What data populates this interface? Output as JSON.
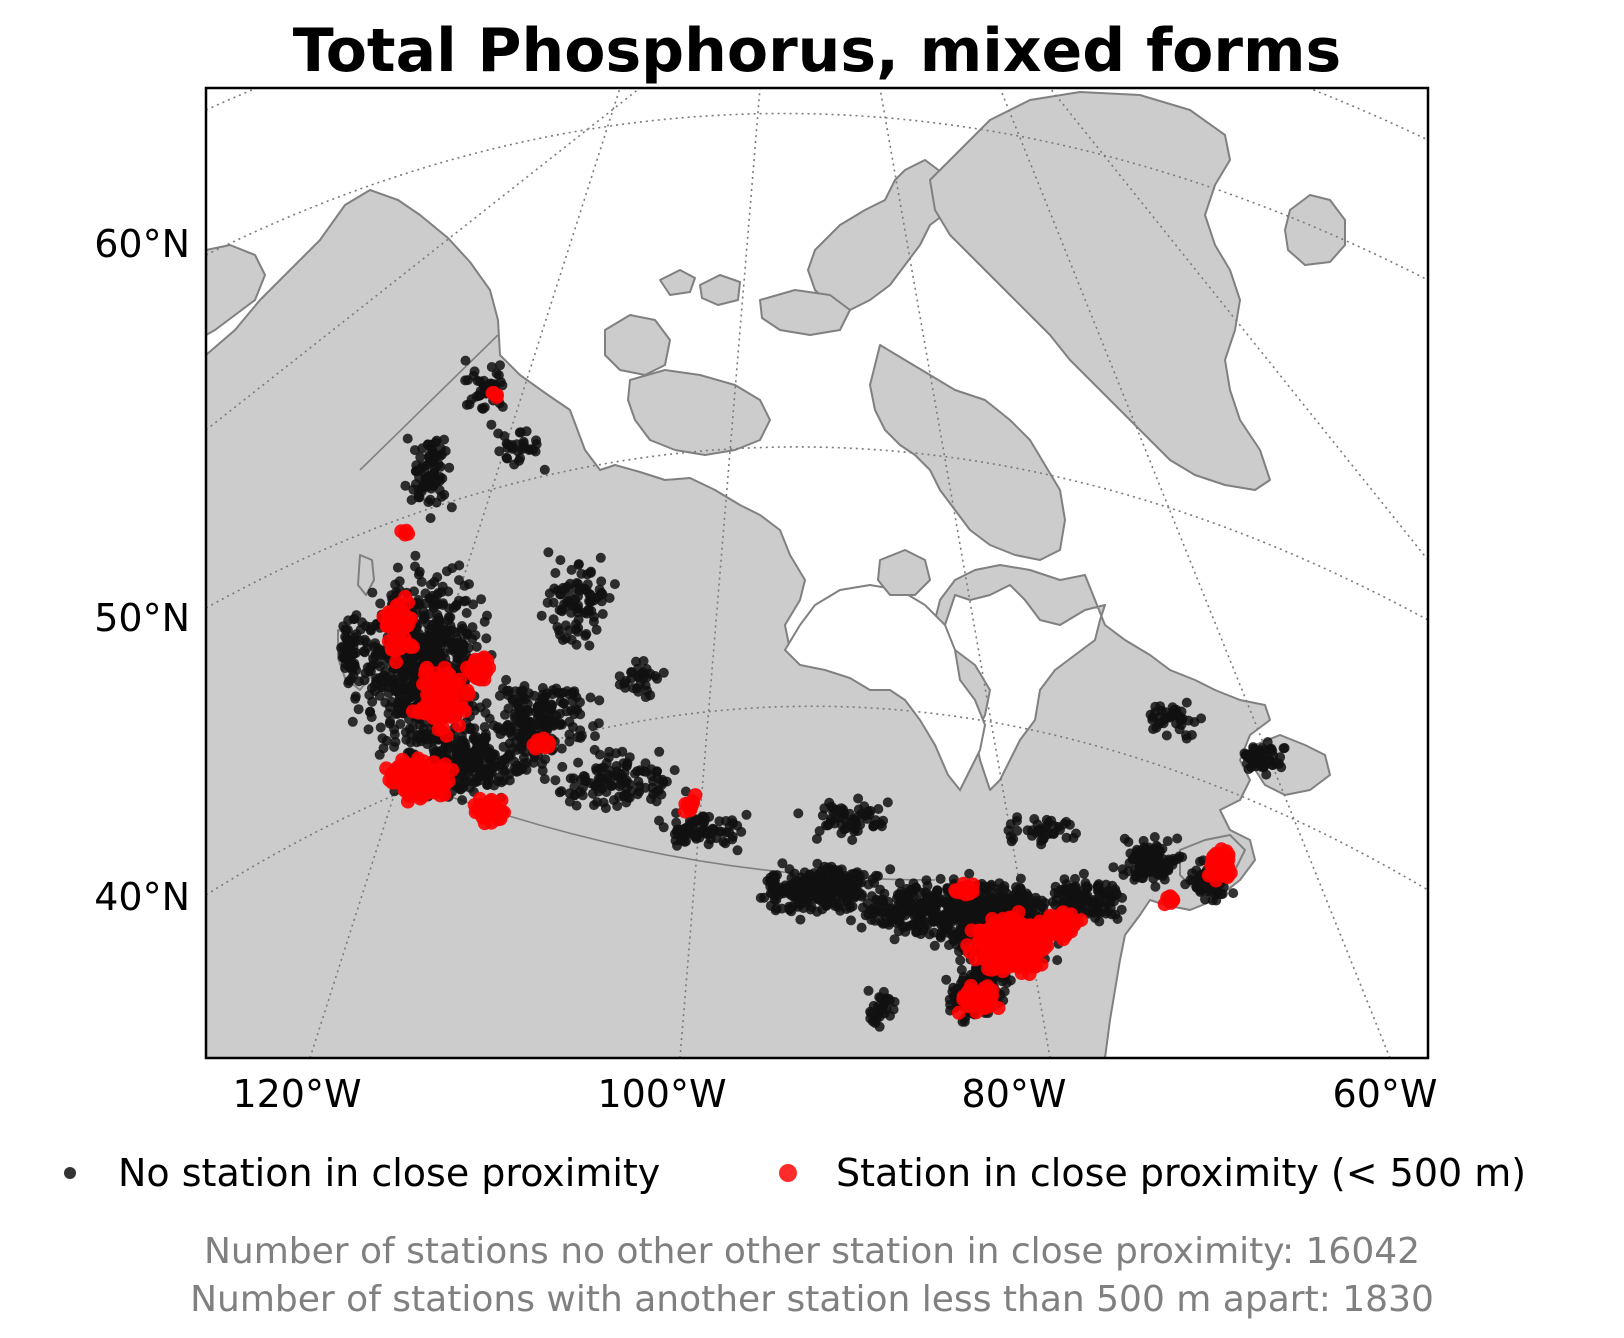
{
  "title": "Total Phosphorus, mixed forms",
  "lat_labels": [
    "60°N",
    "50°N",
    "40°N"
  ],
  "lon_labels": [
    "120°W",
    "100°W",
    "80°W",
    "60°W"
  ],
  "legend": [
    {
      "label": "No station in close proximity",
      "color": "#222222"
    },
    {
      "label": "Station in close proximity (< 500 m)",
      "color": "#ff1a1a"
    }
  ],
  "footnotes": [
    "Number of stations no other other station in close proximity: 16042",
    "Number of stations with another station less than 500 m apart: 1830"
  ],
  "colors": {
    "land": "#cccccc",
    "coastline": "#808080",
    "no_proximity_station": "#111111",
    "proximity_station": "#ff0000",
    "footnote_text": "#808080"
  }
}
